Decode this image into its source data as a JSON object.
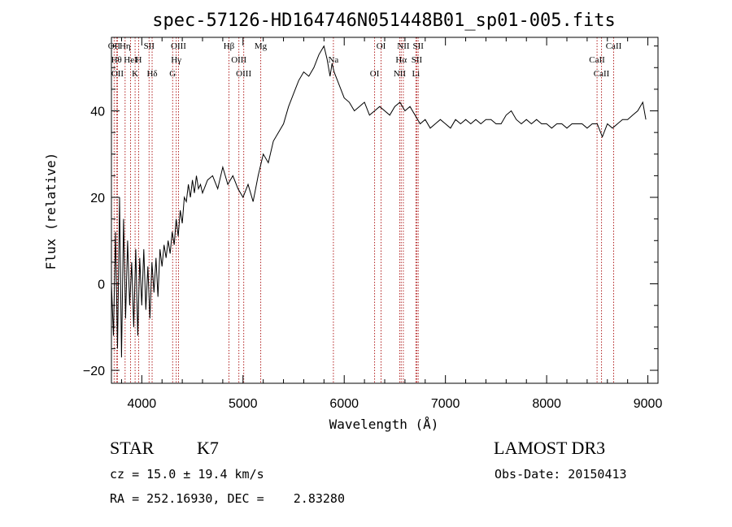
{
  "chart_data": {
    "type": "line",
    "title": "spec-57126-HD164746N051448B01_sp01-005.fits",
    "xlabel": "Wavelength (Å)",
    "ylabel": "Flux (relative)",
    "xlim": [
      3700,
      9100
    ],
    "ylim": [
      -23,
      57
    ],
    "x_ticks": [
      4000,
      5000,
      6000,
      7000,
      8000,
      9000
    ],
    "y_ticks": [
      -20,
      0,
      20,
      40
    ],
    "grid": false,
    "series": [
      {
        "x": [
          3700,
          3720,
          3740,
          3760,
          3780,
          3800,
          3820,
          3840,
          3860,
          3880,
          3900,
          3920,
          3940,
          3960,
          3980,
          4000,
          4020,
          4040,
          4060,
          4080,
          4100,
          4120,
          4140,
          4160,
          4180,
          4200,
          4220,
          4240,
          4260,
          4280,
          4300,
          4320,
          4340,
          4360,
          4380,
          4400,
          4420,
          4440,
          4460,
          4480,
          4500,
          4520,
          4540,
          4560,
          4580,
          4600,
          4650,
          4700,
          4750,
          4800,
          4850,
          4900,
          4950,
          5000,
          5050,
          5100,
          5150,
          5200,
          5250,
          5300,
          5350,
          5400,
          5450,
          5500,
          5550,
          5600,
          5650,
          5700,
          5750,
          5800,
          5830,
          5860,
          5880,
          5900,
          5950,
          6000,
          6050,
          6100,
          6150,
          6200,
          6250,
          6300,
          6350,
          6400,
          6450,
          6500,
          6550,
          6600,
          6650,
          6700,
          6750,
          6800,
          6850,
          6900,
          6950,
          7000,
          7050,
          7100,
          7150,
          7200,
          7250,
          7300,
          7350,
          7400,
          7450,
          7500,
          7550,
          7600,
          7650,
          7700,
          7750,
          7800,
          7850,
          7900,
          7950,
          8000,
          8050,
          8100,
          8150,
          8200,
          8250,
          8300,
          8350,
          8400,
          8450,
          8500,
          8550,
          8600,
          8650,
          8700,
          8750,
          8800,
          8850,
          8900,
          8950,
          8980
        ],
        "y": [
          0,
          -12,
          12,
          -15,
          20,
          -17,
          15,
          -8,
          10,
          -5,
          5,
          -10,
          8,
          -12,
          6,
          -5,
          8,
          -6,
          4,
          -8,
          5,
          -2,
          6,
          -3,
          8,
          4,
          9,
          6,
          10,
          7,
          12,
          9,
          15,
          11,
          17,
          14,
          20,
          19,
          23,
          20,
          24,
          21,
          25,
          22,
          23,
          21,
          24,
          25,
          22,
          27,
          23,
          25,
          22,
          20,
          23,
          19,
          25,
          30,
          28,
          33,
          35,
          37,
          41,
          44,
          47,
          49,
          48,
          50,
          53,
          55,
          52,
          48,
          51,
          49,
          46,
          43,
          42,
          40,
          41,
          42,
          39,
          40,
          41,
          40,
          39,
          41,
          42,
          40,
          41,
          39,
          37,
          38,
          36,
          37,
          38,
          37,
          36,
          38,
          37,
          38,
          37,
          38,
          37,
          38,
          38,
          37,
          37,
          39,
          40,
          38,
          37,
          38,
          37,
          38,
          37,
          37,
          36,
          37,
          37,
          36,
          37,
          37,
          37,
          36,
          37,
          37,
          34,
          37,
          36,
          37,
          38,
          38,
          39,
          40,
          42,
          38
        ]
      }
    ],
    "spectral_lines": [
      {
        "label": "OII",
        "x": 3727
      },
      {
        "label": "Hθ",
        "x": 3750
      },
      {
        "label": "OII",
        "x": 3760
      },
      {
        "label": "Hη",
        "x": 3835
      },
      {
        "label": "HeI",
        "x": 3889
      },
      {
        "label": "K",
        "x": 3934
      },
      {
        "label": "SII",
        "x": 4072
      },
      {
        "label": "H",
        "x": 3969
      },
      {
        "label": "Hδ",
        "x": 4102
      },
      {
        "label": "OIII",
        "x": 4363
      },
      {
        "label": "Hγ",
        "x": 4340
      },
      {
        "label": "G",
        "x": 4305
      },
      {
        "label": "Hβ",
        "x": 4861
      },
      {
        "label": "OIII",
        "x": 4959
      },
      {
        "label": "OIII",
        "x": 5007
      },
      {
        "label": "Mg",
        "x": 5175
      },
      {
        "label": "Na",
        "x": 5893
      },
      {
        "label": "OI",
        "x": 6300
      },
      {
        "label": "OI",
        "x": 6364
      },
      {
        "label": "Hα",
        "x": 6563
      },
      {
        "label": "NII",
        "x": 6548
      },
      {
        "label": "NII",
        "x": 6584
      },
      {
        "label": "SII",
        "x": 6717
      },
      {
        "label": "Li",
        "x": 6708
      },
      {
        "label": "SII",
        "x": 6731
      },
      {
        "label": "CaII",
        "x": 8498
      },
      {
        "label": "CaII",
        "x": 8542
      },
      {
        "label": "CaII",
        "x": 8662
      }
    ]
  },
  "info": {
    "star_class": "STAR",
    "subclass": "K7",
    "survey": "LAMOST DR3",
    "cz": "cz = 15.0 ± 19.4 km/s",
    "obs_date": "Obs-Date: 20150413",
    "coords": "RA = 252.16930, DEC =    2.83280"
  },
  "colors": {
    "line": "#000000",
    "marker": "#b22222"
  }
}
